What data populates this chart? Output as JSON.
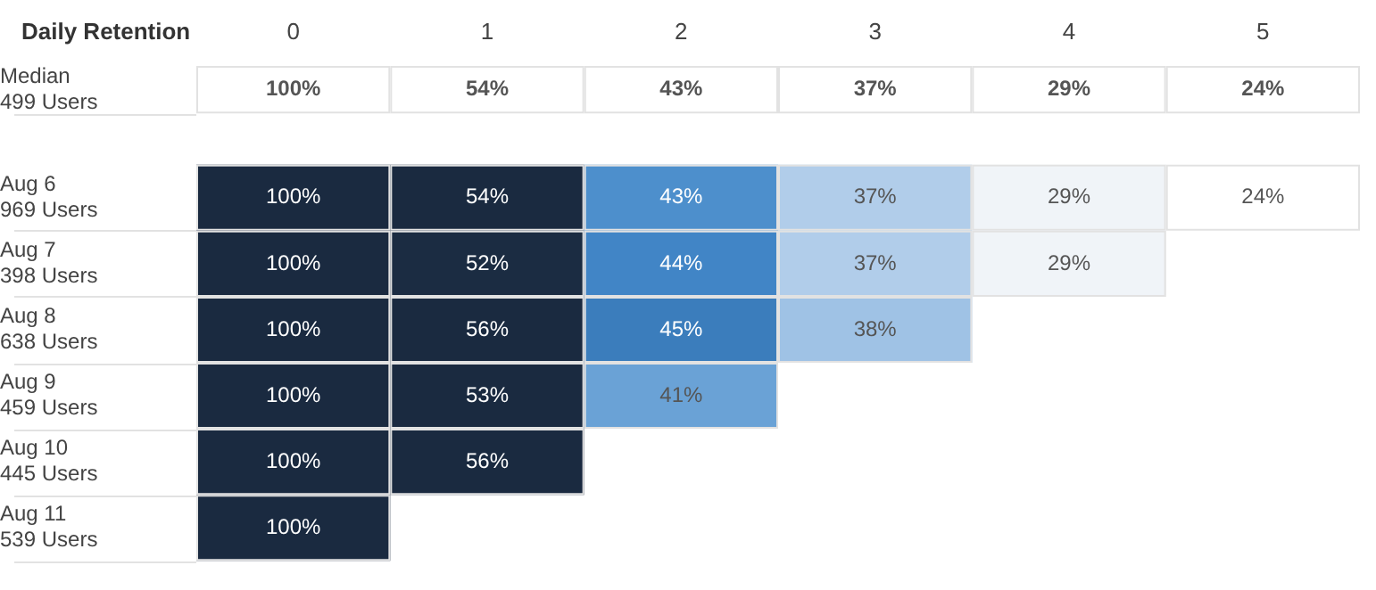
{
  "chart_data": [
    {
      "type": "heatmap",
      "title": "Daily Retention",
      "categories": [
        "0",
        "1",
        "2",
        "3",
        "4",
        "5"
      ],
      "y_categories": [
        "Median\n499 Users"
      ],
      "color": "#ffffff",
      "cells": [
        [
          100,
          54,
          43,
          37,
          29,
          24
        ]
      ],
      "cell_labels": [
        [
          "100%",
          "54%",
          "43%",
          "37%",
          "29%",
          "24%"
        ]
      ]
    },
    {
      "type": "heatmap",
      "categories": [
        "0",
        "1",
        "2",
        "3",
        "4",
        "5"
      ],
      "tick_labels": "y",
      "color": "#1a2a40",
      "y_categories": [
        "Aug 6\n969 Users",
        "Aug 7\n398 Users",
        "Aug 8\n638 Users",
        "Aug 9\n459 Users",
        "Aug 10\n445 Users",
        "Aug 11\n539 Users"
      ],
      "cells": [
        [
          100,
          54,
          43,
          37,
          29,
          24
        ],
        [
          100,
          52,
          44,
          37,
          29,
          null
        ],
        [
          100,
          56,
          45,
          38,
          null,
          null
        ],
        [
          100,
          53,
          41,
          null,
          null,
          null
        ],
        [
          100,
          56,
          null,
          null,
          null,
          null
        ],
        [
          100,
          null,
          null,
          null,
          null,
          null
        ]
      ],
      "cell_labels": [
        [
          "100%",
          "54%",
          "43%",
          "37%",
          "29%",
          "24%"
        ],
        [
          "100%",
          "52%",
          "44%",
          "37%",
          "29%",
          null
        ],
        [
          "100%",
          "56%",
          "45%",
          "38%",
          null,
          null
        ],
        [
          "100%",
          "53%",
          "41%",
          null,
          null,
          null
        ],
        [
          "100%",
          "56%",
          null,
          null,
          null,
          null
        ],
        [
          "100%",
          null,
          null,
          null,
          null,
          null
        ]
      ]
    }
  ]
}
